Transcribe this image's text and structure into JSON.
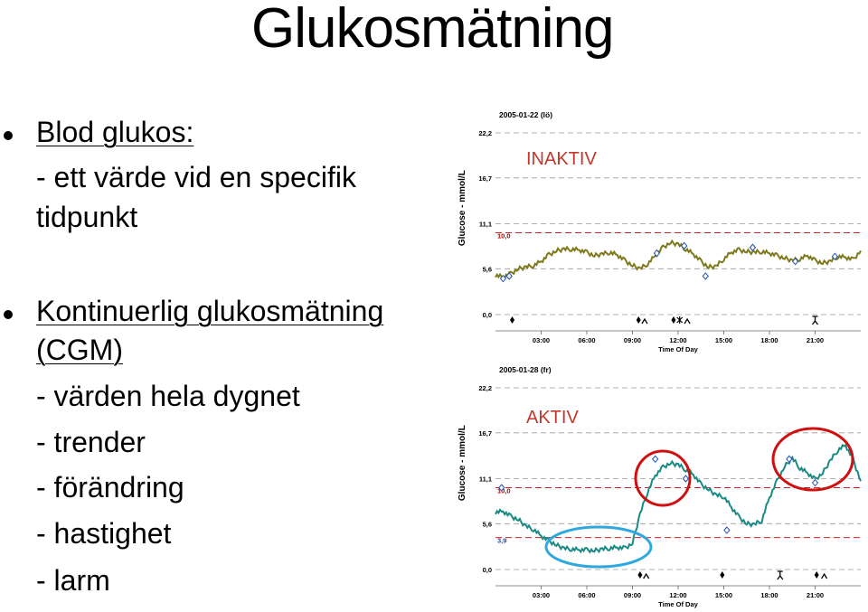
{
  "title": "Glukosmätning",
  "bullets": [
    {
      "heading": "Blod glukos:",
      "lines": [
        "- ett värde vid en specifik",
        "tidpunkt"
      ]
    },
    {
      "heading": "Kontinuerlig glukosmätning",
      "heading2": "(CGM)",
      "lines": [
        "- värden hela dygnet",
        "- trender",
        "- förändring",
        "- hastighet",
        "- larm"
      ]
    }
  ],
  "colors": {
    "inactive_line": "#7f7a1e",
    "active_line": "#1a8a84",
    "annotation": "#c0392b",
    "circle_red": "#d01010",
    "circle_blue": "#2fa8e0",
    "threshold": "#c00000"
  },
  "chart_data": [
    {
      "type": "line",
      "title": "2005-01-22 (lö)",
      "annotation": "INAKTIV",
      "xlabel": "Time Of Day",
      "ylabel": "Glucose - mmol/L",
      "x_ticks": [
        "03:00",
        "06:00",
        "09:00",
        "12:00",
        "15:00",
        "18:00",
        "21:00"
      ],
      "y_ticks": [
        "22,2",
        "16,7",
        "11,1",
        "5,6",
        "0,0"
      ],
      "ylim": [
        0,
        22.2
      ],
      "xlim": [
        0,
        24
      ],
      "threshold_labels": [
        "10,0"
      ],
      "thresholds": [
        10.0
      ],
      "series": [
        {
          "x": [
            0,
            0.5,
            1,
            1.5,
            2,
            2.5,
            3,
            3.5,
            4,
            4.5,
            5,
            5.5,
            6,
            6.5,
            7,
            7.5,
            8,
            8.5,
            9,
            9.5,
            10,
            10.5,
            11,
            11.5,
            12,
            12.5,
            13,
            13.5,
            14,
            14.5,
            15,
            15.5,
            16,
            16.5,
            17,
            17.5,
            18,
            18.5,
            19,
            19.5,
            20,
            20.5,
            21,
            21.5,
            22,
            22.5,
            23,
            23.5,
            24
          ],
          "values": [
            4.8,
            4.6,
            5.0,
            5.6,
            5.8,
            6.0,
            6.5,
            7.3,
            7.8,
            8.0,
            8.0,
            7.9,
            7.6,
            7.2,
            7.4,
            7.6,
            7.3,
            6.6,
            6.0,
            5.6,
            6.2,
            7.2,
            8.2,
            8.8,
            8.6,
            8.0,
            7.4,
            6.5,
            5.8,
            5.9,
            6.8,
            7.6,
            7.9,
            7.7,
            7.6,
            7.7,
            7.5,
            7.2,
            6.9,
            6.6,
            6.8,
            7.2,
            6.6,
            6.3,
            6.5,
            7.1,
            7.0,
            6.7,
            7.8
          ]
        }
      ],
      "sensor_readings": {
        "x": [
          0.5,
          0.9,
          10.6,
          12.4,
          13.8,
          16.9,
          19.7,
          22.3
        ],
        "values": [
          4.4,
          4.7,
          7.5,
          8.4,
          4.7,
          8.2,
          6.5,
          7.1
        ]
      }
    },
    {
      "type": "line",
      "title": "2005-01-28 (fr)",
      "annotation": "AKTIV",
      "xlabel": "Time Of Day",
      "ylabel": "Glucose - mmol/L",
      "x_ticks": [
        "03:00",
        "06:00",
        "09:00",
        "12:00",
        "15:00",
        "18:00",
        "21:00"
      ],
      "y_ticks": [
        "22,2",
        "16,7",
        "11,1",
        "5,6",
        "0,0"
      ],
      "ylim": [
        0,
        22.2
      ],
      "xlim": [
        0,
        24
      ],
      "threshold_labels": [
        "10,0",
        "3,9"
      ],
      "thresholds": [
        10.0,
        3.9
      ],
      "series": [
        {
          "x": [
            0,
            0.5,
            1,
            1.5,
            2,
            2.5,
            3,
            3.5,
            4,
            4.5,
            5,
            5.5,
            6,
            6.5,
            7,
            7.5,
            8,
            8.5,
            9,
            9.5,
            10,
            10.5,
            11,
            11.5,
            12,
            12.5,
            13,
            13.5,
            14,
            14.5,
            15,
            15.5,
            16,
            16.5,
            17,
            17.5,
            18,
            18.5,
            19,
            19.5,
            20,
            20.5,
            21,
            21.5,
            22,
            22.5,
            23,
            23.5,
            24
          ],
          "values": [
            7.0,
            7.1,
            6.5,
            6.1,
            5.3,
            4.9,
            4.1,
            3.5,
            3.0,
            2.6,
            2.5,
            2.4,
            2.4,
            2.3,
            2.5,
            2.6,
            2.7,
            2.6,
            3.2,
            6.8,
            9.5,
            11.5,
            12.5,
            13.0,
            12.8,
            12.2,
            11.6,
            10.4,
            9.8,
            9.1,
            8.9,
            7.6,
            6.4,
            5.6,
            5.5,
            6.0,
            8.8,
            10.8,
            12.6,
            13.6,
            12.4,
            11.8,
            11.0,
            11.8,
            13.3,
            14.6,
            15.2,
            13.4,
            10.8
          ]
        }
      ],
      "sensor_readings": {
        "x": [
          0.4,
          10.5,
          12.5,
          15.2,
          19.3,
          21.0
        ],
        "values": [
          10.0,
          13.5,
          11.1,
          4.8,
          13.5,
          10.6
        ]
      }
    }
  ]
}
